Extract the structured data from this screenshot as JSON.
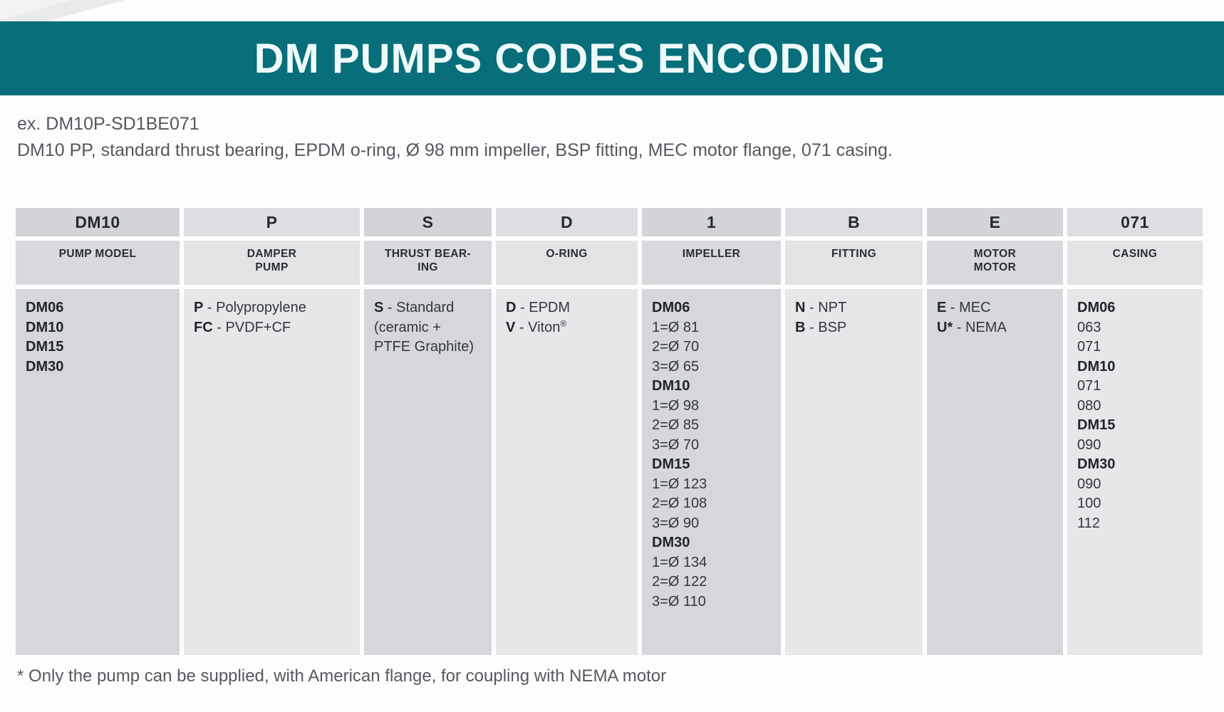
{
  "page": {
    "title": "DM PUMPS CODES ENCODING",
    "example_line1": "ex. DM10P-SD1BE071",
    "example_line2": "DM10 PP, standard thrust bearing, EPDM o-ring, Ø 98 mm impeller, BSP fitting, MEC motor flange, 071 casing.",
    "footnote": "* Only the pump can be supplied, with American flange, for coupling with NEMA motor"
  },
  "colors": {
    "banner_teal": "#076e7a",
    "banner_text": "#eefafa",
    "cell_gray_dark": "#d5d7da",
    "cell_gray_light": "#e6e7e9",
    "text_dark": "#26292e",
    "text_gray": "#55595e"
  },
  "table": {
    "columns": [
      {
        "code": "DM10",
        "label": "PUMP MODEL",
        "lines": [
          {
            "b": "DM06",
            "t": ""
          },
          {
            "b": "DM10",
            "t": ""
          },
          {
            "b": "DM15",
            "t": ""
          },
          {
            "b": "DM30",
            "t": ""
          }
        ]
      },
      {
        "code": "P",
        "label": "DAMPER\nPUMP",
        "lines": [
          {
            "b": "P",
            "t": " - Polypropylene"
          },
          {
            "b": "FC",
            "t": " - PVDF+CF"
          }
        ]
      },
      {
        "code": "S",
        "label": "THRUST BEAR-\nING",
        "lines": [
          {
            "b": "S",
            "t": " - Standard"
          },
          {
            "b": "",
            "t": "(ceramic +"
          },
          {
            "b": "",
            "t": "PTFE Graphite)"
          }
        ]
      },
      {
        "code": "D",
        "label": "O-RING",
        "lines": [
          {
            "b": "D",
            "t": " - EPDM"
          },
          {
            "b": "V",
            "t": " - Viton®"
          }
        ]
      },
      {
        "code": "1",
        "label": "IMPELLER",
        "lines": [
          {
            "b": "DM06",
            "t": ""
          },
          {
            "b": "",
            "t": "1=Ø 81"
          },
          {
            "b": "",
            "t": "2=Ø 70"
          },
          {
            "b": "",
            "t": "3=Ø 65"
          },
          {
            "b": "DM10",
            "t": ""
          },
          {
            "b": "",
            "t": "1=Ø 98"
          },
          {
            "b": "",
            "t": "2=Ø 85"
          },
          {
            "b": "",
            "t": "3=Ø 70"
          },
          {
            "b": "DM15",
            "t": ""
          },
          {
            "b": "",
            "t": "1=Ø 123"
          },
          {
            "b": "",
            "t": "2=Ø 108"
          },
          {
            "b": "",
            "t": "3=Ø 90"
          },
          {
            "b": "DM30",
            "t": ""
          },
          {
            "b": "",
            "t": "1=Ø 134"
          },
          {
            "b": "",
            "t": "2=Ø 122"
          },
          {
            "b": "",
            "t": "3=Ø 110"
          }
        ]
      },
      {
        "code": "B",
        "label": "FITTING",
        "lines": [
          {
            "b": "N",
            "t": " - NPT"
          },
          {
            "b": "B",
            "t": " - BSP"
          }
        ]
      },
      {
        "code": "E",
        "label": "MOTOR\nMOTOR",
        "lines": [
          {
            "b": "E",
            "t": " - MEC"
          },
          {
            "b": "U*",
            "t": " - NEMA"
          }
        ]
      },
      {
        "code": "071",
        "label": "CASING",
        "lines": [
          {
            "b": "DM06",
            "t": ""
          },
          {
            "b": "",
            "t": "063"
          },
          {
            "b": "",
            "t": "071"
          },
          {
            "b": "DM10",
            "t": ""
          },
          {
            "b": "",
            "t": "071"
          },
          {
            "b": "",
            "t": "080"
          },
          {
            "b": "DM15",
            "t": ""
          },
          {
            "b": "",
            "t": "090"
          },
          {
            "b": "DM30",
            "t": ""
          },
          {
            "b": "",
            "t": "090"
          },
          {
            "b": "",
            "t": "100"
          },
          {
            "b": "",
            "t": "112"
          }
        ]
      }
    ]
  }
}
